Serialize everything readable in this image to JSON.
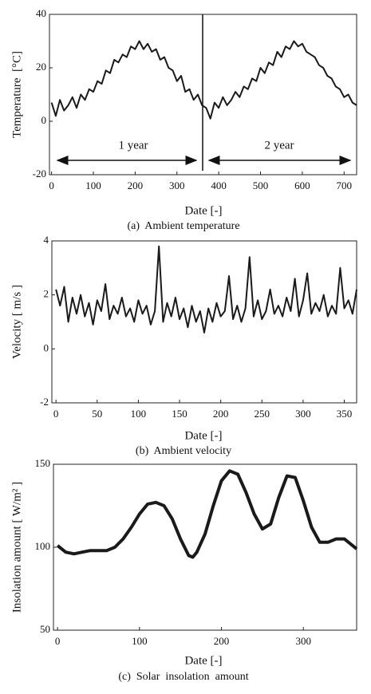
{
  "chart_data": [
    {
      "type": "line",
      "ylabel": "Temperature  [°C]",
      "xlabel": "Date [-]",
      "caption": "(a)  Ambient temperature",
      "annotations": [
        "1 year",
        "2 year"
      ],
      "color": "#1a1a1a",
      "x": [
        0,
        10,
        20,
        30,
        40,
        50,
        60,
        70,
        80,
        90,
        100,
        110,
        120,
        130,
        140,
        150,
        160,
        170,
        180,
        190,
        200,
        210,
        220,
        230,
        240,
        250,
        260,
        270,
        280,
        290,
        300,
        310,
        320,
        330,
        340,
        350,
        360,
        370,
        380,
        390,
        400,
        410,
        420,
        430,
        440,
        450,
        460,
        470,
        480,
        490,
        500,
        510,
        520,
        530,
        540,
        550,
        560,
        570,
        580,
        590,
        600,
        610,
        620,
        630,
        640,
        650,
        660,
        670,
        680,
        690,
        700,
        710,
        720,
        730
      ],
      "values": [
        7,
        2,
        8,
        4,
        6,
        9,
        5,
        10,
        8,
        12,
        11,
        15,
        14,
        19,
        18,
        23,
        22,
        25,
        24,
        28,
        27,
        30,
        27,
        29,
        26,
        27,
        23,
        24,
        20,
        19,
        15,
        17,
        11,
        12,
        8,
        10,
        6,
        5,
        1,
        7,
        5,
        9,
        6,
        8,
        11,
        9,
        13,
        12,
        16,
        15,
        20,
        18,
        22,
        21,
        26,
        24,
        28,
        27,
        30,
        28,
        29,
        26,
        25,
        24,
        21,
        20,
        17,
        16,
        13,
        12,
        9,
        10,
        7,
        6
      ],
      "xlim": [
        -5,
        730
      ],
      "xticks": [
        0,
        100,
        200,
        300,
        400,
        500,
        600,
        700
      ],
      "ylim": [
        -20,
        40
      ],
      "yticks": [
        -20,
        0,
        20,
        40
      ]
    },
    {
      "type": "line",
      "ylabel": "Velocity [ m/s ]",
      "xlabel": "Date [-]",
      "caption": "(b)  Ambient velocity",
      "color": "#1a1a1a",
      "x": [
        0,
        5,
        10,
        15,
        20,
        25,
        30,
        35,
        40,
        45,
        50,
        55,
        60,
        65,
        70,
        75,
        80,
        85,
        90,
        95,
        100,
        105,
        110,
        115,
        120,
        125,
        130,
        135,
        140,
        145,
        150,
        155,
        160,
        165,
        170,
        175,
        180,
        185,
        190,
        195,
        200,
        205,
        210,
        215,
        220,
        225,
        230,
        235,
        240,
        245,
        250,
        255,
        260,
        265,
        270,
        275,
        280,
        285,
        290,
        295,
        300,
        305,
        310,
        315,
        320,
        325,
        330,
        335,
        340,
        345,
        350,
        355,
        360,
        365
      ],
      "values": [
        2.2,
        1.6,
        2.3,
        1.0,
        1.9,
        1.3,
        2.0,
        1.2,
        1.7,
        0.9,
        1.8,
        1.4,
        2.4,
        1.1,
        1.6,
        1.3,
        1.9,
        1.2,
        1.5,
        1.0,
        1.8,
        1.3,
        1.6,
        0.9,
        1.4,
        3.8,
        1.0,
        1.7,
        1.2,
        1.9,
        1.1,
        1.5,
        0.8,
        1.6,
        1.0,
        1.4,
        0.6,
        1.5,
        1.0,
        1.7,
        1.2,
        1.4,
        2.7,
        1.1,
        1.6,
        1.0,
        1.5,
        3.4,
        1.2,
        1.8,
        1.1,
        1.4,
        2.2,
        1.3,
        1.6,
        1.2,
        1.9,
        1.4,
        2.6,
        1.2,
        1.8,
        2.8,
        1.3,
        1.7,
        1.4,
        2.0,
        1.2,
        1.6,
        1.3,
        3.0,
        1.5,
        1.8,
        1.3,
        2.2
      ],
      "xlim": [
        -5,
        365
      ],
      "xticks": [
        0,
        50,
        100,
        150,
        200,
        250,
        300,
        350
      ],
      "ylim": [
        -2,
        4
      ],
      "yticks": [
        -2,
        0,
        2,
        4
      ]
    },
    {
      "type": "line",
      "ylabel": "Insolation amount [ W/m² ]",
      "xlabel": "Date [-]",
      "caption": "(c)  Solar  insolation  amount",
      "color": "#1a1a1a",
      "x": [
        0,
        10,
        20,
        30,
        40,
        50,
        60,
        70,
        80,
        90,
        100,
        110,
        120,
        130,
        140,
        150,
        160,
        165,
        170,
        180,
        190,
        200,
        210,
        220,
        230,
        240,
        250,
        260,
        270,
        280,
        290,
        300,
        310,
        320,
        330,
        340,
        350,
        360,
        365
      ],
      "values": [
        101,
        97,
        96,
        97,
        98,
        98,
        98,
        100,
        105,
        112,
        120,
        126,
        127,
        125,
        117,
        105,
        95,
        94,
        97,
        108,
        125,
        140,
        146,
        144,
        133,
        120,
        111,
        114,
        130,
        143,
        142,
        128,
        112,
        103,
        103,
        105,
        105,
        101,
        99
      ],
      "xlim": [
        -5,
        365
      ],
      "xticks": [
        0,
        100,
        200,
        300
      ],
      "ylim": [
        50,
        150
      ],
      "yticks": [
        50,
        100,
        150
      ]
    }
  ]
}
